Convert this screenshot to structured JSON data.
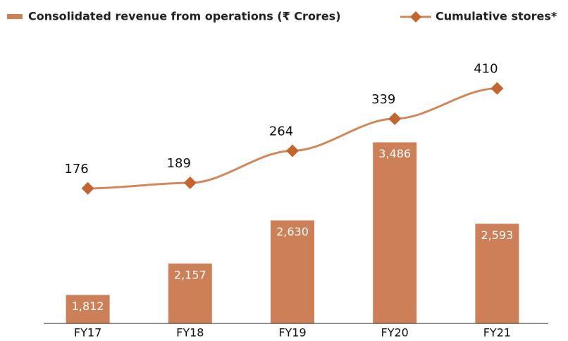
{
  "chart_data": {
    "type": "bar_line",
    "categories": [
      "FY17",
      "FY18",
      "FY19",
      "FY20",
      "FY21"
    ],
    "series": [
      {
        "name": "Consolidated revenue from operations (₹ Crores)",
        "color": "#cd7f57",
        "type": "bar",
        "values": [
          1812,
          2157,
          2630,
          3486,
          2593
        ],
        "value_labels": [
          "1,812",
          "2,157",
          "2,630",
          "3,486",
          "2,593"
        ]
      },
      {
        "name": "Cumulative stores*",
        "color": "#d2885e",
        "marker_color": "#c4652f",
        "type": "line",
        "axis": "y2",
        "values": [
          176,
          189,
          264,
          339,
          410
        ]
      }
    ],
    "ylim": [
      1500,
      4500
    ],
    "y2lim": [
      -140,
      500
    ],
    "legend": "top"
  }
}
